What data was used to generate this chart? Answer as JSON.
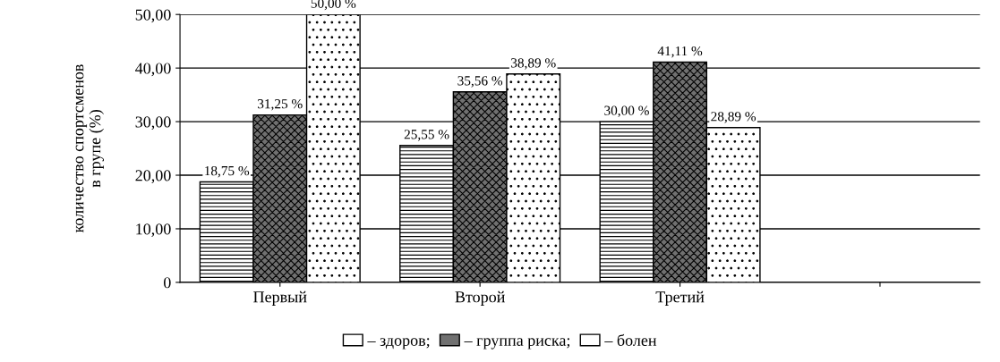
{
  "chart_data": {
    "type": "bar",
    "ylabel": "количество спортсменов\nв групе (%)",
    "categories": [
      "Первый",
      "Второй",
      "Третий",
      null
    ],
    "series": [
      {
        "name": "– здоров;",
        "color": "#ffffff",
        "values": [
          18.75,
          25.55,
          30.0,
          null
        ],
        "value_labels": [
          "18,75 %",
          "25,55 %",
          "30,00 %",
          null
        ]
      },
      {
        "name": "– группа риска;",
        "color": "#707070",
        "values": [
          31.25,
          35.56,
          41.11,
          null
        ],
        "value_labels": [
          "31,25 %",
          "35,56 %",
          "41,11 %",
          null
        ]
      },
      {
        "name": "– болен",
        "color": "#ffffff",
        "values": [
          50.0,
          38.89,
          28.89,
          null
        ],
        "value_labels": [
          "50,00 %",
          "38,89 %",
          "28,89 %",
          null
        ]
      }
    ],
    "ylim": [
      0,
      50
    ],
    "yticks": [
      0,
      {
        "value": 10,
        "label": "10,00"
      },
      {
        "value": 20,
        "label": "20,00"
      },
      {
        "value": 30,
        "label": "30,00"
      },
      {
        "value": 40,
        "label": "40,00"
      },
      {
        "value": 50,
        "label": "50,00"
      }
    ],
    "grid": "y",
    "legend": "bottom"
  }
}
